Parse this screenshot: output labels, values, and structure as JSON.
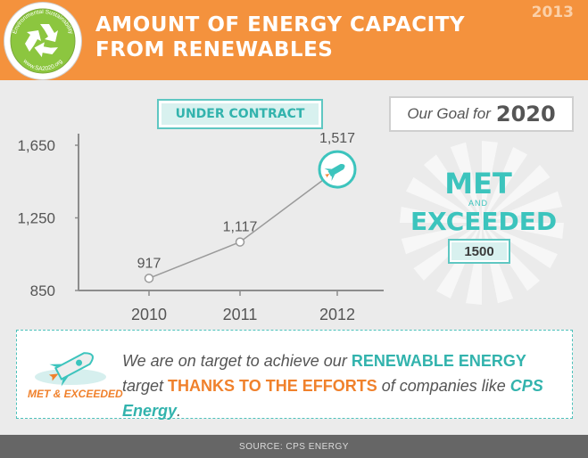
{
  "header": {
    "title_line1": "AMOUNT OF ENERGY CAPACITY",
    "title_line2": "FROM RENEWABLES",
    "year": "2013"
  },
  "logo": {
    "ring_top": "Environmental Sustainability",
    "ring_bottom": "www.SA2020.org",
    "icon": "recycle-icon"
  },
  "badge": {
    "label": "UNDER CONTRACT"
  },
  "goal": {
    "prefix": "Our Goal for",
    "year": "2020",
    "met": "MET",
    "and": "AND",
    "exceeded": "EXCEEDED",
    "value": "1500"
  },
  "chart_data": {
    "type": "line",
    "x": [
      "2010",
      "2011",
      "2012"
    ],
    "values": [
      917,
      1117,
      1517
    ],
    "data_labels": [
      "917",
      "1,117",
      "1,517"
    ],
    "y_ticks": [
      "1,650",
      "1,250",
      "850"
    ],
    "y_tick_values": [
      1650,
      1250,
      850
    ],
    "ylim": [
      850,
      1650
    ],
    "grid": false,
    "colors": {
      "line": "#9a9a9a",
      "marker": "#ffffff",
      "highlight": "#3cc4bd",
      "text": "#555555"
    }
  },
  "callout": {
    "icon_label": "MET & EXCEEDED",
    "icon": "rocket-icon",
    "t1": "We are on target to achieve our ",
    "t2": "RENEWABLE ENERGY",
    "t3": "target ",
    "t4": "THANKS TO THE EFFORTS",
    "t5": " of companies like ",
    "t6": "CPS Energy",
    "t7": "."
  },
  "footer": {
    "source": "SOURCE: CPS ENERGY"
  },
  "colors": {
    "orange": "#f4923d",
    "teal": "#3cc4bd",
    "grey_bg": "#ebebeb",
    "footer": "#666666"
  }
}
